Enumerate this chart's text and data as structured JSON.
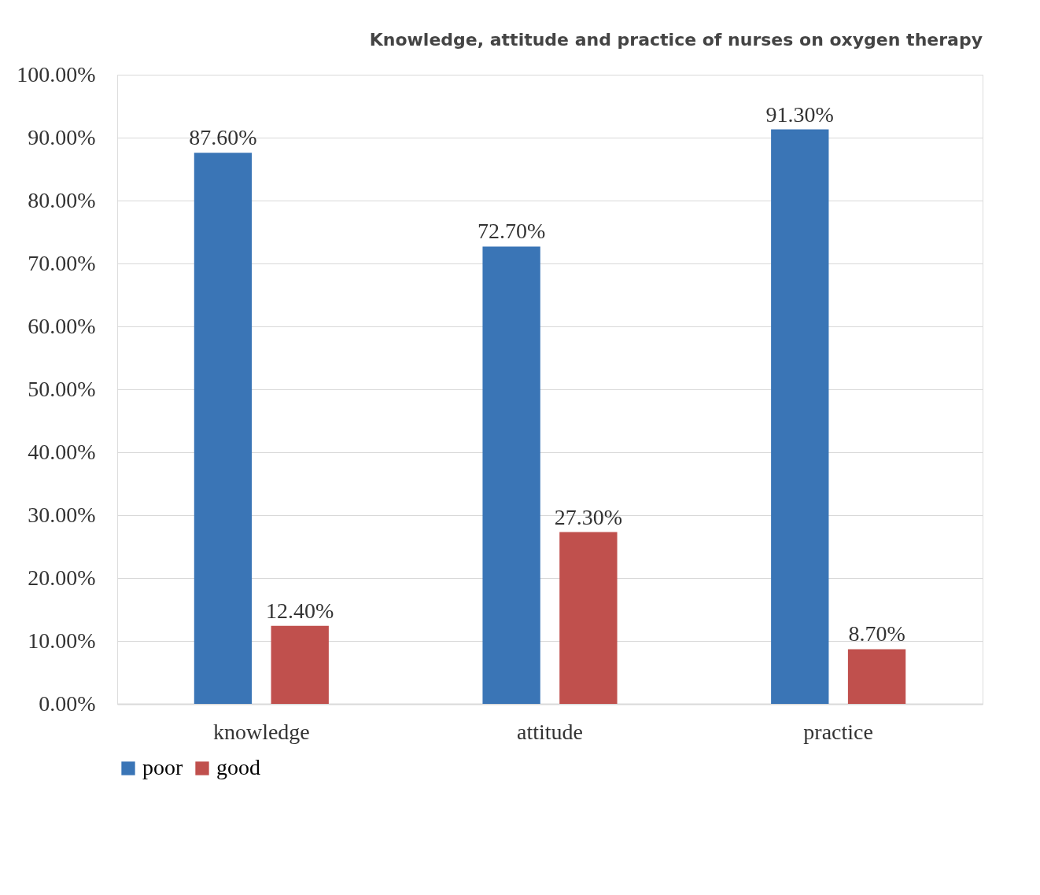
{
  "chart_data": {
    "type": "bar",
    "title": "Knowledge, attitude and practice of nurses on oxygen therapy",
    "categories": [
      "knowledge",
      "attitude",
      "practice"
    ],
    "series": [
      {
        "name": "poor",
        "color": "#3a75b6",
        "values": [
          87.6,
          72.7,
          91.3
        ],
        "value_labels": [
          "87.60%",
          "72.70%",
          "91.30%"
        ]
      },
      {
        "name": "good",
        "color": "#c0504d",
        "values": [
          12.4,
          27.3,
          8.7
        ],
        "value_labels": [
          "12.40%",
          "27.30%",
          "8.70%"
        ]
      }
    ],
    "ylim": [
      0,
      100
    ],
    "yticks": [
      {
        "value": 0,
        "label": "0.00%"
      },
      {
        "value": 10,
        "label": "10.00%"
      },
      {
        "value": 20,
        "label": "20.00%"
      },
      {
        "value": 30,
        "label": "30.00%"
      },
      {
        "value": 40,
        "label": "40.00%"
      },
      {
        "value": 50,
        "label": "50.00%"
      },
      {
        "value": 60,
        "label": "60.00%"
      },
      {
        "value": 70,
        "label": "70.00%"
      },
      {
        "value": 80,
        "label": "80.00%"
      },
      {
        "value": 90,
        "label": "90.00%"
      },
      {
        "value": 100,
        "label": "100.00%"
      }
    ],
    "grid": "y",
    "legend": "bottom"
  }
}
